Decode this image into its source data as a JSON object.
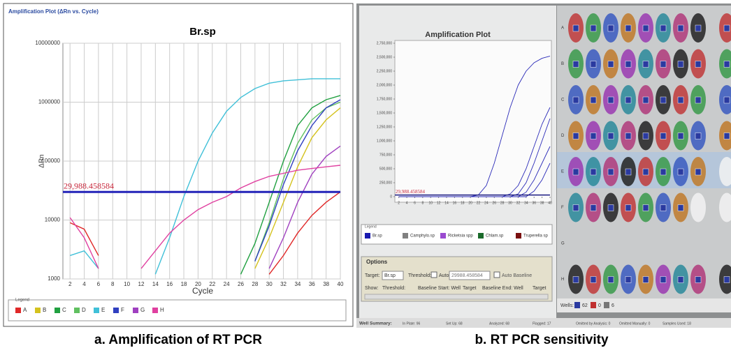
{
  "figure": {
    "caption_a": "a. Amplification of RT PCR",
    "caption_b": "b. RT PCR sensitivity"
  },
  "chart_data": [
    {
      "type": "line",
      "window_title": "Amplification Plot (ΔRn vs. Cycle)",
      "title": "Br.sp",
      "x_label": "Cycle",
      "y_label": "ΔRn",
      "log_y": true,
      "xlim": [
        1,
        40
      ],
      "ylim": [
        1000,
        10000000
      ],
      "xticks": [
        2,
        4,
        6,
        8,
        10,
        12,
        14,
        16,
        18,
        20,
        22,
        24,
        26,
        28,
        30,
        32,
        34,
        36,
        38,
        40
      ],
      "yticks": [
        1000,
        10000,
        100000,
        1000000,
        10000000
      ],
      "grid": true,
      "threshold": {
        "value": 29988.458584,
        "label": "29,988.458584"
      },
      "threshold_color": "#2323b8",
      "legend_title": "Legend",
      "x": [
        2,
        4,
        6,
        8,
        10,
        12,
        14,
        16,
        18,
        20,
        22,
        24,
        26,
        28,
        30,
        32,
        34,
        36,
        38,
        40
      ],
      "series": [
        {
          "name": "A",
          "color": "#e02828",
          "values": [
            9000,
            7000,
            2500,
            null,
            null,
            null,
            null,
            null,
            null,
            null,
            null,
            null,
            null,
            null,
            1200,
            2500,
            6000,
            12000,
            20000,
            30000
          ]
        },
        {
          "name": "B",
          "color": "#d4c21e",
          "values": [
            null,
            null,
            null,
            null,
            null,
            null,
            null,
            null,
            null,
            null,
            null,
            null,
            null,
            1500,
            5000,
            20000,
            80000,
            250000,
            500000,
            800000
          ]
        },
        {
          "name": "C",
          "color": "#20a040",
          "values": [
            null,
            null,
            null,
            null,
            null,
            null,
            null,
            null,
            null,
            null,
            null,
            null,
            1200,
            4000,
            20000,
            100000,
            400000,
            800000,
            1100000,
            1300000
          ]
        },
        {
          "name": "D",
          "color": "#60c060",
          "values": [
            null,
            null,
            null,
            null,
            null,
            null,
            null,
            null,
            null,
            null,
            null,
            null,
            null,
            2000,
            9000,
            50000,
            200000,
            500000,
            800000,
            1000000
          ]
        },
        {
          "name": "E",
          "color": "#40c0d8",
          "values": [
            2500,
            3000,
            1500,
            null,
            null,
            null,
            1200,
            5000,
            25000,
            100000,
            300000,
            700000,
            1200000,
            1700000,
            2100000,
            2300000,
            2400000,
            2500000,
            2500000,
            2500000
          ]
        },
        {
          "name": "F",
          "color": "#3040c0",
          "values": [
            null,
            null,
            null,
            null,
            null,
            null,
            null,
            null,
            null,
            null,
            null,
            null,
            null,
            2000,
            8000,
            40000,
            150000,
            400000,
            800000,
            1100000
          ]
        },
        {
          "name": "G",
          "color": "#a040c0",
          "values": [
            null,
            null,
            null,
            null,
            null,
            null,
            null,
            null,
            null,
            null,
            null,
            null,
            null,
            null,
            1500,
            5000,
            20000,
            60000,
            120000,
            180000
          ]
        },
        {
          "name": "H",
          "color": "#e040a0",
          "values": [
            11000,
            5000,
            1500,
            null,
            null,
            1500,
            3000,
            6000,
            10000,
            15000,
            20000,
            25000,
            35000,
            45000,
            55000,
            62000,
            70000,
            75000,
            80000,
            85000
          ]
        }
      ]
    },
    {
      "type": "line",
      "title": "Amplification Plot",
      "log_y": false,
      "xlim": [
        1,
        40
      ],
      "ylim": [
        0,
        2750000
      ],
      "xticks": [
        2,
        4,
        6,
        8,
        10,
        12,
        14,
        16,
        18,
        20,
        22,
        24,
        26,
        28,
        30,
        32,
        34,
        36,
        38,
        40
      ],
      "yticks": [
        0,
        {
          "value": 250000,
          "label": "250,000"
        },
        {
          "value": 500000,
          "label": "500,000"
        },
        {
          "value": 750000,
          "label": "750,000"
        },
        {
          "value": 1000000,
          "label": "1,000,000"
        },
        {
          "value": 1250000,
          "label": "1,250,000"
        },
        {
          "value": 1500000,
          "label": "1,500,000"
        },
        {
          "value": 1750000,
          "label": "1,750,000"
        },
        {
          "value": 2000000,
          "label": "2,000,000"
        },
        {
          "value": 2250000,
          "label": "2,250,000"
        },
        {
          "value": 2500000,
          "label": "2,500,000"
        },
        {
          "value": 2750000,
          "label": "2,750,000"
        }
      ],
      "grid": false,
      "threshold": {
        "value": 29988.458584,
        "label": "29,988.458584"
      },
      "threshold_color": "#1a1a80",
      "legend_title": "Legend",
      "legend": [
        {
          "name": "Br.sp",
          "color": "#1a1ab0"
        },
        {
          "name": "Camphylo.sp",
          "color": "#808080"
        },
        {
          "name": "Ricketsia spp",
          "color": "#9a4ad0"
        },
        {
          "name": "Chlam.sp",
          "color": "#1a6a2a"
        },
        {
          "name": "Truperella sp",
          "color": "#7a1010"
        }
      ],
      "x": [
        2,
        4,
        6,
        8,
        10,
        12,
        14,
        16,
        18,
        20,
        22,
        24,
        26,
        28,
        30,
        32,
        34,
        36,
        38,
        40
      ],
      "series": [
        {
          "color": "#2a2ab8",
          "values": [
            0,
            0,
            0,
            0,
            0,
            0,
            0,
            0,
            0,
            0,
            30000,
            200000,
            600000,
            1100000,
            1600000,
            2000000,
            2250000,
            2400000,
            2480000,
            2520000
          ]
        },
        {
          "color": "#2a2ab8",
          "values": [
            0,
            0,
            0,
            0,
            0,
            0,
            0,
            0,
            0,
            0,
            0,
            0,
            0,
            0,
            50000,
            200000,
            500000,
            900000,
            1300000,
            1600000
          ]
        },
        {
          "color": "#2a2ab8",
          "values": [
            0,
            0,
            0,
            0,
            0,
            0,
            0,
            0,
            0,
            0,
            0,
            0,
            0,
            0,
            0,
            50000,
            250000,
            600000,
            1000000,
            1400000
          ]
        },
        {
          "color": "#2a2ab8",
          "values": [
            0,
            0,
            0,
            0,
            0,
            0,
            0,
            0,
            0,
            0,
            0,
            0,
            0,
            0,
            0,
            0,
            80000,
            300000,
            600000,
            900000
          ]
        },
        {
          "color": "#2a2ab8",
          "values": [
            0,
            0,
            0,
            0,
            0,
            0,
            0,
            0,
            0,
            0,
            0,
            0,
            0,
            0,
            0,
            0,
            0,
            100000,
            300000,
            600000
          ]
        }
      ]
    }
  ],
  "software": {
    "options_title": "Options",
    "target_label": "Target:",
    "target_value": "Br.sp",
    "threshold_label": "Threshold:",
    "auto": "Auto",
    "threshold_value": "29988.458584",
    "auto_baseline": "Auto Baseline",
    "show_label": "Show:",
    "show_threshold": "Threshold:",
    "baseline_start": "Baseline Start: Well",
    "target_1": "Target",
    "baseline_end": "Baseline End: Well",
    "target_2": "Target",
    "plate_rows": [
      "A",
      "B",
      "C",
      "D",
      "E",
      "F",
      "G",
      "H"
    ],
    "wells_label": "Wells:",
    "wells_counts": [
      62,
      0,
      6
    ],
    "status": [
      "Well Summary:",
      "In Plate: 96",
      "Set Up: 68",
      "Analyzed: 68",
      "Flagged: 17",
      "Omitted by Analysis: 0",
      "Omitted Manually: 0",
      "Samples Used: 18"
    ]
  }
}
